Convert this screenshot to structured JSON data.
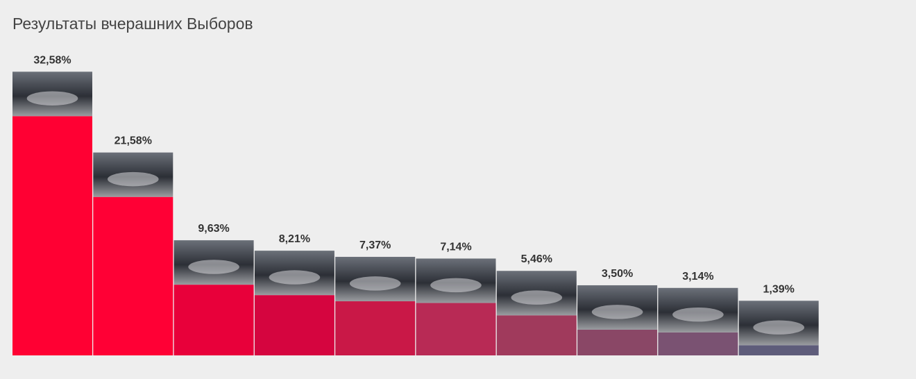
{
  "chart_data": {
    "type": "bar",
    "title": "Результаты вчерашних Выборов",
    "values": [
      32.58,
      21.58,
      9.63,
      8.21,
      7.37,
      7.14,
      5.46,
      3.5,
      3.14,
      1.39
    ],
    "value_labels": [
      "32,58%",
      "21,58%",
      "9,63%",
      "8,21%",
      "7,37%",
      "7,14%",
      "5,46%",
      "3,50%",
      "3,14%",
      "1,39%"
    ],
    "colors": [
      "#ff0033",
      "#ff0035",
      "#e8003a",
      "#d5053f",
      "#c91847",
      "#b82a55",
      "#a03a5c",
      "#8a4766",
      "#7a5272",
      "#5e5c7a"
    ]
  }
}
